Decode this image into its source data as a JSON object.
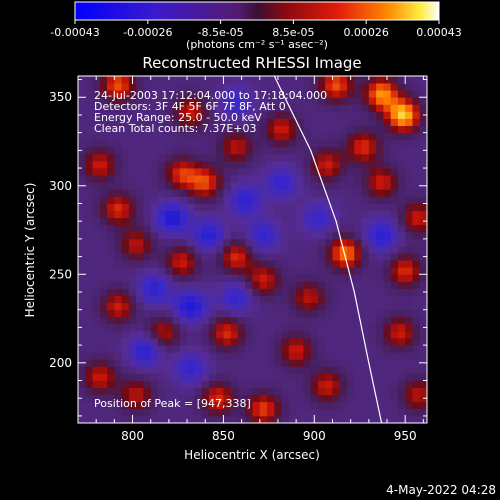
{
  "colorbar": {
    "tick_labels": [
      "-0.00043",
      "-0.00026",
      "-8.5e-05",
      "8.5e-05",
      "0.00026",
      "0.00043"
    ],
    "range": [
      -0.00043,
      0.00043
    ],
    "units_label": "(photons cm⁻² s⁻¹ asec⁻²)"
  },
  "chart_data": {
    "type": "heatmap",
    "title": "Reconstructed RHESSI Image",
    "xlabel": "Heliocentric X (arcsec)",
    "ylabel": "Heliocentric Y (arcsec)",
    "xlim": [
      770,
      962
    ],
    "ylim": [
      166,
      362
    ],
    "xticks": [
      800,
      850,
      900,
      950
    ],
    "yticks": [
      200,
      250,
      300,
      350
    ],
    "annotations": {
      "time_range": "24-Jul-2003 17:12:04.000 to 17:18:04.000",
      "detectors": "Detectors: 3F 4F 5F 6F 7F 8F, Att 0",
      "energy": "Energy Range: 25.0 - 50.0 keV",
      "method": "Clean    Total counts: 7.37E+03",
      "peak": "Position of Peak = [947,338]"
    },
    "limb_points": [
      [
        878,
        362
      ],
      [
        898,
        320
      ],
      [
        912,
        280
      ],
      [
        922,
        240
      ],
      [
        930,
        200
      ],
      [
        937,
        166
      ]
    ],
    "bright_spots": [
      {
        "x": 947,
        "y": 338,
        "level": 1.0
      },
      {
        "x": 935,
        "y": 350,
        "level": 0.85
      },
      {
        "x": 910,
        "y": 355,
        "level": 0.7
      },
      {
        "x": 790,
        "y": 355,
        "level": 0.7
      },
      {
        "x": 830,
        "y": 340,
        "level": 0.55
      },
      {
        "x": 825,
        "y": 305,
        "level": 0.6
      },
      {
        "x": 838,
        "y": 300,
        "level": 0.65
      },
      {
        "x": 855,
        "y": 320,
        "level": 0.5
      },
      {
        "x": 880,
        "y": 330,
        "level": 0.55
      },
      {
        "x": 905,
        "y": 310,
        "level": 0.55
      },
      {
        "x": 925,
        "y": 320,
        "level": 0.6
      },
      {
        "x": 935,
        "y": 300,
        "level": 0.55
      },
      {
        "x": 915,
        "y": 260,
        "level": 0.8
      },
      {
        "x": 948,
        "y": 250,
        "level": 0.6
      },
      {
        "x": 955,
        "y": 280,
        "level": 0.55
      },
      {
        "x": 780,
        "y": 310,
        "level": 0.55
      },
      {
        "x": 790,
        "y": 285,
        "level": 0.6
      },
      {
        "x": 800,
        "y": 265,
        "level": 0.5
      },
      {
        "x": 825,
        "y": 255,
        "level": 0.55
      },
      {
        "x": 855,
        "y": 258,
        "level": 0.6
      },
      {
        "x": 870,
        "y": 245,
        "level": 0.55
      },
      {
        "x": 895,
        "y": 235,
        "level": 0.5
      },
      {
        "x": 790,
        "y": 230,
        "level": 0.55
      },
      {
        "x": 815,
        "y": 215,
        "level": 0.5
      },
      {
        "x": 850,
        "y": 215,
        "level": 0.6
      },
      {
        "x": 888,
        "y": 205,
        "level": 0.55
      },
      {
        "x": 780,
        "y": 190,
        "level": 0.55
      },
      {
        "x": 845,
        "y": 178,
        "level": 0.6
      },
      {
        "x": 870,
        "y": 172,
        "level": 0.65
      },
      {
        "x": 905,
        "y": 185,
        "level": 0.55
      },
      {
        "x": 945,
        "y": 215,
        "level": 0.55
      },
      {
        "x": 955,
        "y": 180,
        "level": 0.5
      },
      {
        "x": 800,
        "y": 180,
        "level": 0.5
      }
    ],
    "dim_spots": [
      {
        "x": 820,
        "y": 280,
        "level": -0.7
      },
      {
        "x": 840,
        "y": 270,
        "level": -0.6
      },
      {
        "x": 860,
        "y": 290,
        "level": -0.55
      },
      {
        "x": 870,
        "y": 270,
        "level": -0.5
      },
      {
        "x": 810,
        "y": 240,
        "level": -0.55
      },
      {
        "x": 830,
        "y": 230,
        "level": -0.7
      },
      {
        "x": 805,
        "y": 205,
        "level": -0.6
      },
      {
        "x": 830,
        "y": 195,
        "level": -0.5
      },
      {
        "x": 855,
        "y": 235,
        "level": -0.5
      },
      {
        "x": 935,
        "y": 270,
        "level": -0.6
      },
      {
        "x": 900,
        "y": 280,
        "level": -0.45
      },
      {
        "x": 880,
        "y": 300,
        "level": -0.5
      },
      {
        "x": 855,
        "y": 345,
        "level": -0.45
      }
    ]
  },
  "timestamp": "4-May-2022 04:28"
}
